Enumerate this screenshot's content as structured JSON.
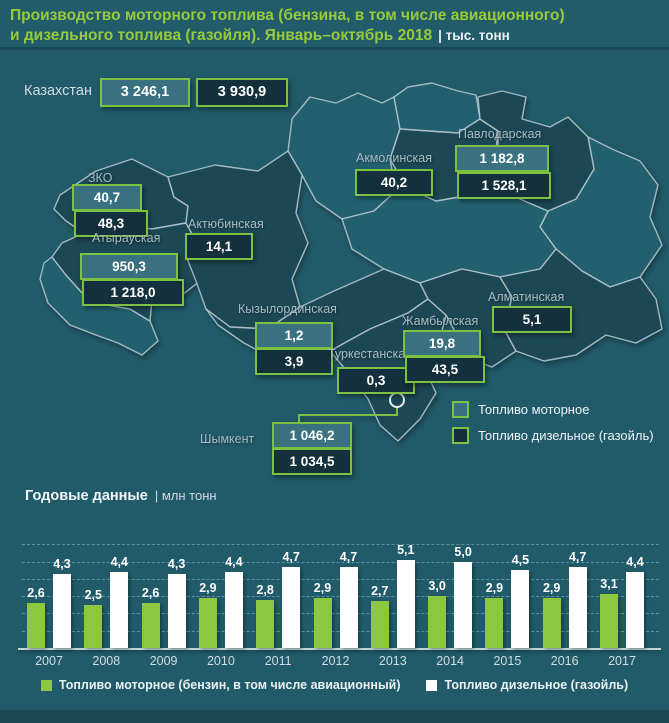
{
  "title": {
    "line1": "Производство моторного топлива (бензина, в том числе авиационного)",
    "line2": "и дизельного топлива (газойля). Январь–октябрь 2018",
    "unit_label": "| тыс. тонн"
  },
  "map": {
    "country": {
      "name": "Казахстан",
      "motor": "3 246,1",
      "diesel": "3 930,9"
    },
    "regions": [
      {
        "name": "ЗКО",
        "motor": "40,7",
        "diesel": "48,3"
      },
      {
        "name": "Атырауская",
        "motor": "950,3",
        "diesel": "1 218,0"
      },
      {
        "name": "Актюбинская",
        "diesel": "14,1"
      },
      {
        "name": "Акмолинская",
        "diesel": "40,2"
      },
      {
        "name": "Павлодарская",
        "motor": "1 182,8",
        "diesel": "1 528,1"
      },
      {
        "name": "Кызылординская",
        "motor": "1,2",
        "diesel": "3,9"
      },
      {
        "name": "Туркестанская",
        "diesel": "0,3"
      },
      {
        "name": "Жамбылская",
        "motor": "19,8",
        "diesel": "43,5"
      },
      {
        "name": "Алматинская",
        "diesel": "5,1"
      },
      {
        "name": "Шымкент",
        "motor": "1 046,2",
        "diesel": "1 034,5"
      }
    ],
    "legend": [
      {
        "label": "Топливо моторное",
        "type": "motor"
      },
      {
        "label": "Топливо дизельное (газойль)",
        "type": "diesel"
      }
    ]
  },
  "annual": {
    "heading": "Годовые данные",
    "unit_label": "| млн тонн"
  },
  "chart_data": {
    "type": "bar",
    "title": "Годовые данные, млн тонн",
    "categories": [
      "2007",
      "2008",
      "2009",
      "2010",
      "2011",
      "2012",
      "2013",
      "2014",
      "2015",
      "2016",
      "2017"
    ],
    "series": [
      {
        "name": "Топливо моторное (бензин, в том числе авиационный)",
        "color": "#8dc63f",
        "values": [
          2.6,
          2.5,
          2.6,
          2.9,
          2.8,
          2.9,
          2.7,
          3.0,
          2.9,
          2.9,
          3.1
        ],
        "labels": [
          "2,6",
          "2,5",
          "2,6",
          "2,9",
          "2,8",
          "2,9",
          "2,7",
          "3,0",
          "2,9",
          "2,9",
          "3,1"
        ]
      },
      {
        "name": "Топливо дизельное (газойль)",
        "color": "#ffffff",
        "values": [
          4.3,
          4.4,
          4.3,
          4.4,
          4.7,
          4.7,
          5.1,
          5.0,
          4.5,
          4.7,
          4.4
        ],
        "labels": [
          "4,3",
          "4,4",
          "4,3",
          "4,4",
          "4,7",
          "4,7",
          "5,1",
          "5,0",
          "4,5",
          "4,7",
          "4,4"
        ]
      }
    ],
    "ylim": [
      0,
      6
    ],
    "xlabel": "",
    "ylabel": "млн тонн",
    "grid": "horizontal-dashed",
    "legend_position": "bottom"
  },
  "colors": {
    "background": "#215a69",
    "region_dark": "#1d4654",
    "region_light": "#24606f",
    "box_border": "#7dc142",
    "motor_box_fill": "#3a7181",
    "diesel_box_fill": "#14303c",
    "accent_green": "#97ca3b",
    "bar_motor": "#8dc63f",
    "bar_diesel": "#ffffff"
  }
}
